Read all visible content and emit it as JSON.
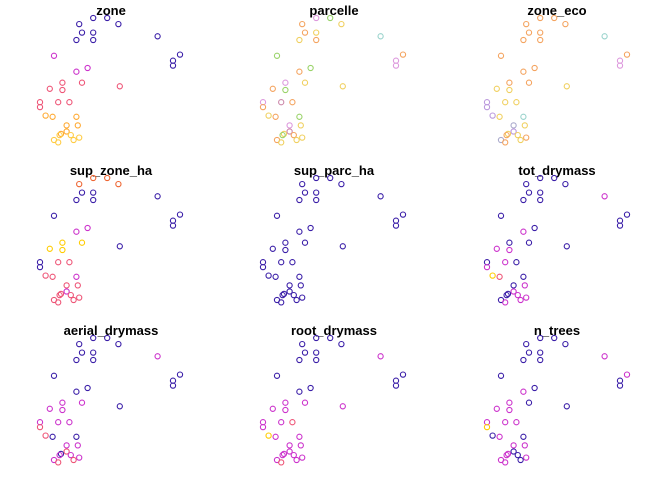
{
  "chart_data": {
    "type": "scatter",
    "layout": "3x3 small multiples",
    "marker": "open-circle",
    "background": "#ffffff",
    "grid": false,
    "axes": false,
    "legend": "none",
    "points": [
      [
        0.38,
        0.0
      ],
      [
        0.48,
        0.0
      ],
      [
        0.28,
        0.05
      ],
      [
        0.56,
        0.05
      ],
      [
        0.3,
        0.12
      ],
      [
        0.38,
        0.12
      ],
      [
        0.38,
        0.18
      ],
      [
        0.26,
        0.18
      ],
      [
        0.84,
        0.15
      ],
      [
        1.0,
        0.3
      ],
      [
        0.95,
        0.35
      ],
      [
        0.95,
        0.39
      ],
      [
        0.1,
        0.31
      ],
      [
        0.34,
        0.41
      ],
      [
        0.26,
        0.44
      ],
      [
        0.16,
        0.53
      ],
      [
        0.3,
        0.53
      ],
      [
        0.57,
        0.56
      ],
      [
        0.16,
        0.59
      ],
      [
        0.07,
        0.58
      ],
      [
        0.0,
        0.69
      ],
      [
        0.13,
        0.69
      ],
      [
        0.21,
        0.69
      ],
      [
        0.0,
        0.73
      ],
      [
        0.04,
        0.8
      ],
      [
        0.09,
        0.81
      ],
      [
        0.26,
        0.81
      ],
      [
        0.19,
        0.88
      ],
      [
        0.27,
        0.88
      ],
      [
        0.19,
        0.93
      ],
      [
        0.15,
        0.95
      ],
      [
        0.14,
        0.96
      ],
      [
        0.22,
        0.96
      ],
      [
        0.28,
        0.98
      ],
      [
        0.1,
        1.0
      ],
      [
        0.24,
        1.0
      ],
      [
        0.13,
        1.02
      ]
    ],
    "panels": [
      {
        "title": "zone",
        "colors": [
          "#3b1fa8",
          "#3b1fa8",
          "#3b1fa8",
          "#3b1fa8",
          "#3b1fa8",
          "#3b1fa8",
          "#3b1fa8",
          "#3b1fa8",
          "#3b1fa8",
          "#3b1fa8",
          "#3b1fa8",
          "#3b1fa8",
          "#cc33cc",
          "#cc33cc",
          "#cc33cc",
          "#ee5577",
          "#ee5577",
          "#ee5577",
          "#ee5577",
          "#ee5577",
          "#ee5577",
          "#ee5577",
          "#ee5577",
          "#ee5577",
          "#ffaa33",
          "#ffaa33",
          "#ffaa33",
          "#ffaa33",
          "#ffaa33",
          "#ffaa33",
          "#ffaa33",
          "#ffcc44",
          "#ffcc44",
          "#ffcc44",
          "#ffcc44",
          "#ffcc44",
          "#ffcc44"
        ]
      },
      {
        "title": "parcelle",
        "colors": [
          "#dd99dd",
          "#9ad36a",
          "#f4a460",
          "#f0d060",
          "#f4a460",
          "#f0d060",
          "#f4a460",
          "#f0d060",
          "#9ad3cc",
          "#f4a460",
          "#dd99dd",
          "#dd99dd",
          "#9ad36a",
          "#9ad36a",
          "#f4a460",
          "#dd99dd",
          "#f0d060",
          "#f0d060",
          "#9ad36a",
          "#f4a460",
          "#dd99dd",
          "#cc88aa",
          "#f4a460",
          "#f4a460",
          "#f0d060",
          "#f4a460",
          "#9ad36a",
          "#dd99dd",
          "#f0d060",
          "#cc88aa",
          "#f0d060",
          "#9ad36a",
          "#f4a460",
          "#f0d060",
          "#f4a460",
          "#f0d060",
          "#f0d060"
        ]
      },
      {
        "title": "zone_eco",
        "colors": [
          "#f4a460",
          "#f4a460",
          "#f4a460",
          "#f4a460",
          "#f4a460",
          "#f4a460",
          "#f4a460",
          "#f4a460",
          "#9ad3cc",
          "#f4a460",
          "#dd99dd",
          "#dd99dd",
          "#f4a460",
          "#f4a460",
          "#f4a460",
          "#f4a460",
          "#f4a460",
          "#f0d060",
          "#f0d060",
          "#f0d060",
          "#bb99dd",
          "#f0d060",
          "#f0d060",
          "#bb99dd",
          "#bb99dd",
          "#f0d060",
          "#9ad3cc",
          "#aaaacc",
          "#f0d060",
          "#bb99dd",
          "#f0d060",
          "#f4a460",
          "#f0d060",
          "#f4a460",
          "#aaaacc",
          "#f0d060",
          "#f4a460"
        ]
      },
      {
        "title": "sup_zone_ha",
        "colors": [
          "#ee6633",
          "#ee6633",
          "#ee6633",
          "#ee6633",
          "#3b1fa8",
          "#3b1fa8",
          "#3b1fa8",
          "#3b1fa8",
          "#3b1fa8",
          "#3b1fa8",
          "#3b1fa8",
          "#3b1fa8",
          "#3b1fa8",
          "#cc33cc",
          "#cc33cc",
          "#ffcc00",
          "#ffcc00",
          "#3b1fa8",
          "#ffcc00",
          "#ffcc00",
          "#3b1fa8",
          "#ee5577",
          "#ee5577",
          "#3b1fa8",
          "#ee5577",
          "#ee5577",
          "#cc33cc",
          "#ee5577",
          "#ee5577",
          "#cc33cc",
          "#ee5577",
          "#ee5577",
          "#ee5577",
          "#ee5577",
          "#ee5577",
          "#ee5577",
          "#ee5577"
        ]
      },
      {
        "title": "sup_parc_ha",
        "colors": [
          "#3b1fa8",
          "#3b1fa8",
          "#3b1fa8",
          "#3b1fa8",
          "#3b1fa8",
          "#3b1fa8",
          "#3b1fa8",
          "#3b1fa8",
          "#3b1fa8",
          "#3b1fa8",
          "#3b1fa8",
          "#3b1fa8",
          "#3b1fa8",
          "#3b1fa8",
          "#3b1fa8",
          "#3b1fa8",
          "#3b1fa8",
          "#3b1fa8",
          "#3b1fa8",
          "#3b1fa8",
          "#3b1fa8",
          "#3b1fa8",
          "#3b1fa8",
          "#3b1fa8",
          "#3b1fa8",
          "#3b1fa8",
          "#3b1fa8",
          "#3b1fa8",
          "#3b1fa8",
          "#3b1fa8",
          "#3b1fa8",
          "#3b1fa8",
          "#3b1fa8",
          "#3b1fa8",
          "#3b1fa8",
          "#3b1fa8",
          "#3b1fa8"
        ]
      },
      {
        "title": "tot_drymass",
        "colors": [
          "#3b1fa8",
          "#3b1fa8",
          "#3b1fa8",
          "#3b1fa8",
          "#3b1fa8",
          "#3b1fa8",
          "#3b1fa8",
          "#3b1fa8",
          "#cc33cc",
          "#3b1fa8",
          "#3b1fa8",
          "#3b1fa8",
          "#3b1fa8",
          "#3b1fa8",
          "#cc33cc",
          "#3b1fa8",
          "#3b1fa8",
          "#3b1fa8",
          "#cc33cc",
          "#cc33cc",
          "#3b1fa8",
          "#cc33cc",
          "#3b1fa8",
          "#cc33cc",
          "#ffcc00",
          "#ee5577",
          "#3b1fa8",
          "#3b1fa8",
          "#cc33cc",
          "#cc33cc",
          "#3b1fa8",
          "#3b1fa8",
          "#cc33cc",
          "#cc33cc",
          "#3b1fa8",
          "#cc33cc",
          "#cc33cc"
        ]
      },
      {
        "title": "aerial_drymass",
        "colors": [
          "#3b1fa8",
          "#3b1fa8",
          "#3b1fa8",
          "#3b1fa8",
          "#3b1fa8",
          "#3b1fa8",
          "#3b1fa8",
          "#3b1fa8",
          "#cc33cc",
          "#3b1fa8",
          "#3b1fa8",
          "#3b1fa8",
          "#3b1fa8",
          "#3b1fa8",
          "#3b1fa8",
          "#cc33cc",
          "#cc33cc",
          "#3b1fa8",
          "#cc33cc",
          "#cc33cc",
          "#cc33cc",
          "#cc33cc",
          "#cc33cc",
          "#ee5577",
          "#ee5577",
          "#3b1fa8",
          "#3b1fa8",
          "#cc33cc",
          "#cc33cc",
          "#ee5577",
          "#3b1fa8",
          "#cc33cc",
          "#cc33cc",
          "#cc33cc",
          "#cc33cc",
          "#ee5577",
          "#ee5577"
        ]
      },
      {
        "title": "root_drymass",
        "colors": [
          "#3b1fa8",
          "#3b1fa8",
          "#3b1fa8",
          "#3b1fa8",
          "#3b1fa8",
          "#3b1fa8",
          "#3b1fa8",
          "#3b1fa8",
          "#cc33cc",
          "#3b1fa8",
          "#3b1fa8",
          "#3b1fa8",
          "#3b1fa8",
          "#3b1fa8",
          "#3b1fa8",
          "#cc33cc",
          "#cc33cc",
          "#cc33cc",
          "#cc33cc",
          "#cc33cc",
          "#cc33cc",
          "#cc33cc",
          "#ee5577",
          "#cc33cc",
          "#ffcc00",
          "#cc33cc",
          "#cc33cc",
          "#cc33cc",
          "#cc33cc",
          "#cc33cc",
          "#cc33cc",
          "#cc33cc",
          "#cc33cc",
          "#cc33cc",
          "#cc33cc",
          "#cc33cc",
          "#ee5577"
        ]
      },
      {
        "title": "n_trees",
        "colors": [
          "#3b1fa8",
          "#3b1fa8",
          "#3b1fa8",
          "#3b1fa8",
          "#3b1fa8",
          "#3b1fa8",
          "#3b1fa8",
          "#3b1fa8",
          "#cc33cc",
          "#cc33cc",
          "#3b1fa8",
          "#3b1fa8",
          "#3b1fa8",
          "#3b1fa8",
          "#cc33cc",
          "#cc33cc",
          "#3b1fa8",
          "#3b1fa8",
          "#cc33cc",
          "#cc33cc",
          "#cc33cc",
          "#cc33cc",
          "#cc33cc",
          "#ffcc00",
          "#3b1fa8",
          "#cc33cc",
          "#3b1fa8",
          "#cc33cc",
          "#cc33cc",
          "#3b1fa8",
          "#cc33cc",
          "#cc33cc",
          "#3b1fa8",
          "#cc33cc",
          "#cc33cc",
          "#3b1fa8",
          "#cc33cc"
        ]
      }
    ]
  }
}
